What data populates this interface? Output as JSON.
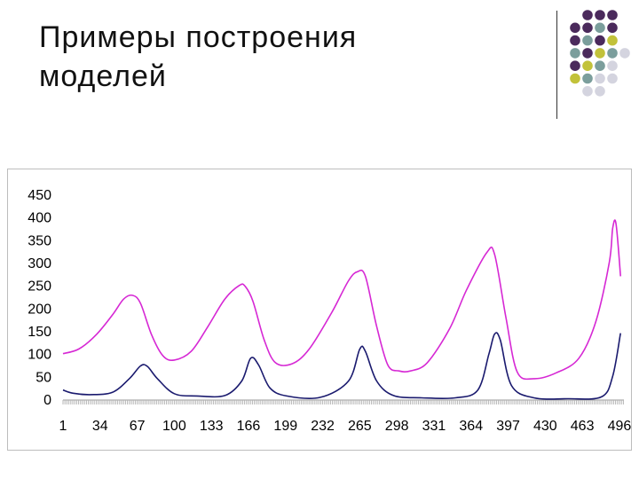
{
  "slide": {
    "title_line1": "Примеры построения",
    "title_line2": "моделей"
  },
  "decoration": {
    "dot_colors": {
      "dark_purple": "#4b2a5c",
      "slate": "#7b9e9c",
      "olive": "#c2c23a",
      "light_gray": "#d4d4df"
    }
  },
  "chart_data": {
    "type": "line",
    "title": "",
    "xlabel": "",
    "ylabel": "",
    "ylim": [
      0,
      450
    ],
    "y_ticks": [
      "450",
      "400",
      "350",
      "300",
      "250",
      "200",
      "150",
      "100",
      "50",
      "0"
    ],
    "x_ticks": [
      "1",
      "34",
      "67",
      "100",
      "133",
      "166",
      "199",
      "232",
      "265",
      "298",
      "331",
      "364",
      "397",
      "430",
      "463",
      "496"
    ],
    "xlim": [
      1,
      500
    ],
    "grid": false,
    "legend": "none",
    "series": [
      {
        "color": "#d628d4",
        "x": [
          1,
          15,
          30,
          45,
          55,
          63,
          70,
          80,
          90,
          100,
          115,
          130,
          145,
          158,
          163,
          170,
          180,
          190,
          205,
          220,
          240,
          255,
          263,
          270,
          280,
          290,
          300,
          310,
          325,
          345,
          360,
          378,
          385,
          395,
          405,
          420,
          440,
          460,
          475,
          487,
          490,
          493,
          497
        ],
        "y": [
          100,
          110,
          140,
          185,
          220,
          228,
          210,
          140,
          95,
          86,
          105,
          160,
          220,
          250,
          248,
          215,
          130,
          80,
          78,
          110,
          190,
          260,
          280,
          270,
          160,
          75,
          62,
          62,
          80,
          155,
          240,
          322,
          318,
          180,
          60,
          45,
          58,
          90,
          170,
          300,
          375,
          385,
          270
        ]
      },
      {
        "color": "#1a1a6e",
        "x": [
          1,
          10,
          25,
          45,
          60,
          70,
          76,
          85,
          100,
          120,
          145,
          160,
          168,
          175,
          185,
          200,
          230,
          255,
          265,
          270,
          280,
          295,
          320,
          350,
          370,
          380,
          385,
          390,
          400,
          420,
          450,
          480,
          490,
          497
        ],
        "y": [
          20,
          13,
          10,
          15,
          45,
          73,
          72,
          45,
          12,
          7,
          8,
          40,
          90,
          75,
          25,
          7,
          4,
          40,
          110,
          105,
          40,
          8,
          3,
          3,
          20,
          100,
          143,
          130,
          30,
          3,
          1,
          5,
          50,
          145
        ]
      }
    ]
  }
}
